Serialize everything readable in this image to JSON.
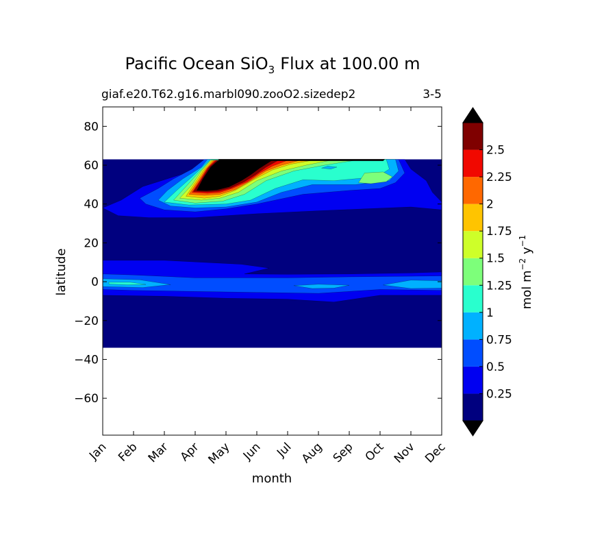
{
  "chart_data": {
    "type": "contourf",
    "title_main": "Pacific Ocean SiO",
    "title_sub": "3",
    "title_rest": "Flux at 100.00 m",
    "subtitle_left": "giaf.e20.T62.g16.marbl090.zooO2.sizedep2",
    "subtitle_right": "3-5",
    "xlabel": "month",
    "ylabel": "latitude",
    "xticks": [
      "Jan",
      "Feb",
      "Mar",
      "Apr",
      "May",
      "Jun",
      "Jul",
      "Aug",
      "Sep",
      "Oct",
      "Nov",
      "Dec"
    ],
    "yticks": [
      80,
      60,
      40,
      20,
      0,
      -20,
      -40,
      -60
    ],
    "ytick_labels": [
      "80",
      "60",
      "40",
      "20",
      "0",
      "−20",
      "−40",
      "−60"
    ],
    "xlim": [
      0,
      11
    ],
    "ylim": [
      -79,
      90
    ],
    "data_lat_range": [
      -34,
      63
    ],
    "colorbar": {
      "label_main": "mol m",
      "label_exp1": "−2",
      "label_mid": " y",
      "label_exp2": "−1",
      "levels": [
        0.25,
        0.5,
        0.75,
        1,
        1.25,
        1.5,
        1.75,
        2,
        2.25,
        2.5
      ],
      "tick_labels": [
        "0.25",
        "0.5",
        "0.75",
        "1",
        "1.25",
        "1.5",
        "1.75",
        "2",
        "2.25",
        "2.5"
      ],
      "colors": [
        "#00007f",
        "#0000f1",
        "#004dff",
        "#00b1ff",
        "#29ffce",
        "#7dff7a",
        "#ceff29",
        "#ffc400",
        "#ff6800",
        "#f10800",
        "#7f0000"
      ],
      "under_color": "#000000",
      "over_color": "#000000"
    },
    "regions": [
      {
        "name": "north-band-050",
        "level": 1,
        "color": "#0000f1",
        "pts": [
          [
            0,
            38
          ],
          [
            0.6,
            42
          ],
          [
            1.3,
            49
          ],
          [
            1.9,
            52
          ],
          [
            2.5,
            55
          ],
          [
            3.2,
            58
          ],
          [
            3.5,
            63
          ],
          [
            9.8,
            63
          ],
          [
            10,
            58
          ],
          [
            10.5,
            52
          ],
          [
            10.7,
            46
          ],
          [
            11,
            41
          ],
          [
            11,
            37
          ],
          [
            10,
            38.5
          ],
          [
            8.5,
            37.5
          ],
          [
            7,
            36.5
          ],
          [
            5,
            35
          ],
          [
            3,
            33
          ],
          [
            1.5,
            33
          ],
          [
            0.5,
            34
          ]
        ]
      },
      {
        "name": "north-band-075",
        "level": 2,
        "color": "#004dff",
        "pts": [
          [
            1.2,
            43
          ],
          [
            1.8,
            48
          ],
          [
            2.3,
            53
          ],
          [
            2.9,
            58
          ],
          [
            3.3,
            63
          ],
          [
            9.6,
            63
          ],
          [
            9.8,
            56
          ],
          [
            9.5,
            51
          ],
          [
            9,
            48
          ],
          [
            8,
            47
          ],
          [
            6.5,
            45
          ],
          [
            5,
            40
          ],
          [
            4,
            37.5
          ],
          [
            3,
            36
          ],
          [
            2,
            37
          ],
          [
            1.4,
            40
          ]
        ]
      },
      {
        "name": "north-band-100",
        "level": 3,
        "color": "#00b1ff",
        "pts": [
          [
            1.8,
            42
          ],
          [
            2.1,
            47
          ],
          [
            2.6,
            53
          ],
          [
            3.2,
            59
          ],
          [
            3.4,
            63
          ],
          [
            9.5,
            63
          ],
          [
            9.6,
            57
          ],
          [
            9.3,
            52
          ],
          [
            8.2,
            50
          ],
          [
            6.8,
            50
          ],
          [
            5.8,
            46
          ],
          [
            5,
            41
          ],
          [
            4,
            38.5
          ],
          [
            3,
            38
          ],
          [
            2.2,
            39
          ]
        ]
      },
      {
        "name": "north-band-125",
        "level": 4,
        "color": "#29ffce",
        "pts": [
          [
            2,
            41
          ],
          [
            2.4,
            47
          ],
          [
            2.9,
            54
          ],
          [
            3.3,
            60
          ],
          [
            3.5,
            63
          ],
          [
            9.2,
            63
          ],
          [
            9.3,
            58
          ],
          [
            8.9,
            54
          ],
          [
            7.5,
            52
          ],
          [
            6.5,
            52.5
          ],
          [
            5.6,
            48
          ],
          [
            4.8,
            42
          ],
          [
            4,
            40
          ],
          [
            2.8,
            39.5
          ]
        ]
      },
      {
        "name": "north-band-150",
        "level": 5,
        "color": "#7dff7a",
        "pts": [
          [
            2.3,
            42
          ],
          [
            2.7,
            49
          ],
          [
            3.1,
            56
          ],
          [
            3.5,
            62.5
          ],
          [
            8.2,
            62.5
          ],
          [
            7.2,
            60
          ],
          [
            6.2,
            57
          ],
          [
            5.3,
            52
          ],
          [
            4.6,
            45
          ],
          [
            3.9,
            41.5
          ],
          [
            3,
            40.5
          ]
        ]
      },
      {
        "name": "north-band-175",
        "level": 6,
        "color": "#ceff29",
        "pts": [
          [
            2.5,
            43
          ],
          [
            2.9,
            50
          ],
          [
            3.2,
            57
          ],
          [
            3.5,
            62.5
          ],
          [
            7.4,
            62.5
          ],
          [
            6.6,
            60
          ],
          [
            5.8,
            57
          ],
          [
            5,
            52
          ],
          [
            4.4,
            46
          ],
          [
            3.8,
            43
          ],
          [
            3.2,
            42
          ]
        ]
      },
      {
        "name": "north-band-200",
        "level": 7,
        "color": "#ffc400",
        "pts": [
          [
            2.7,
            44
          ],
          [
            3,
            51
          ],
          [
            3.3,
            58
          ],
          [
            3.55,
            62.5
          ],
          [
            6.8,
            62.5
          ],
          [
            6.1,
            60.5
          ],
          [
            5.5,
            57.5
          ],
          [
            4.9,
            52.5
          ],
          [
            4.3,
            47
          ],
          [
            3.8,
            44
          ],
          [
            3.3,
            43
          ]
        ]
      },
      {
        "name": "north-band-225",
        "level": 8,
        "color": "#ff6800",
        "pts": [
          [
            2.8,
            45
          ],
          [
            3.1,
            52
          ],
          [
            3.35,
            58
          ],
          [
            3.6,
            62.5
          ],
          [
            6.4,
            62.5
          ],
          [
            5.8,
            60
          ],
          [
            5.3,
            57
          ],
          [
            4.8,
            52
          ],
          [
            4.3,
            47.5
          ],
          [
            3.8,
            45
          ],
          [
            3.3,
            44.5
          ]
        ]
      },
      {
        "name": "north-band-250",
        "level": 9,
        "color": "#f10800",
        "pts": [
          [
            2.9,
            46
          ],
          [
            3.15,
            52
          ],
          [
            3.4,
            58.5
          ],
          [
            3.65,
            62.5
          ],
          [
            6,
            62.5
          ],
          [
            5.5,
            59.5
          ],
          [
            5.1,
            56
          ],
          [
            4.7,
            51.5
          ],
          [
            4.2,
            48
          ],
          [
            3.8,
            46
          ],
          [
            3.4,
            45.5
          ]
        ]
      },
      {
        "name": "north-band-275",
        "level": 10,
        "color": "#7f0000",
        "pts": [
          [
            2.95,
            46.5
          ],
          [
            3.2,
            52.5
          ],
          [
            3.45,
            59
          ],
          [
            3.7,
            62.5
          ],
          [
            5.7,
            62.5
          ],
          [
            5.3,
            59
          ],
          [
            4.95,
            55
          ],
          [
            4.6,
            51.5
          ],
          [
            4.15,
            48.3
          ],
          [
            3.75,
            46.6
          ],
          [
            3.4,
            46.2
          ]
        ]
      },
      {
        "name": "north-over-black",
        "level": 11,
        "color": "#000000",
        "pts": [
          [
            3.05,
            47
          ],
          [
            3.25,
            53
          ],
          [
            3.5,
            59
          ],
          [
            3.75,
            62.5
          ],
          [
            5.5,
            62.5
          ],
          [
            5.1,
            58.5
          ],
          [
            4.8,
            55
          ],
          [
            4.5,
            52
          ],
          [
            4.1,
            48.8
          ],
          [
            3.7,
            47.2
          ],
          [
            3.35,
            46.8
          ]
        ]
      },
      {
        "name": "north-top-black",
        "level": 11,
        "color": "#000000",
        "pts": [
          [
            3.8,
            62.2
          ],
          [
            9.1,
            62.2
          ],
          [
            9.15,
            63
          ],
          [
            3.75,
            63
          ]
        ]
      },
      {
        "name": "north-oct-patch",
        "level": 5,
        "color": "#7dff7a",
        "pts": [
          [
            8.3,
            51
          ],
          [
            8.5,
            56
          ],
          [
            9.1,
            56.5
          ],
          [
            9.4,
            54
          ],
          [
            9.2,
            51.5
          ],
          [
            8.7,
            50.5
          ]
        ]
      },
      {
        "name": "north-sep-blob",
        "level": 3,
        "color": "#00b1ff",
        "pts": [
          [
            7.1,
            58.5
          ],
          [
            7.3,
            59.5
          ],
          [
            7.6,
            59
          ],
          [
            7.4,
            58
          ]
        ]
      },
      {
        "name": "eq-band-050",
        "level": 1,
        "color": "#0000f1",
        "pts": [
          [
            0,
            11
          ],
          [
            2,
            11
          ],
          [
            4.5,
            9
          ],
          [
            5.4,
            7
          ],
          [
            4.6,
            4
          ],
          [
            6,
            3.8
          ],
          [
            8,
            4
          ],
          [
            10,
            4.5
          ],
          [
            11,
            5
          ],
          [
            11,
            -7
          ],
          [
            9,
            -7
          ],
          [
            7.5,
            -10.5
          ],
          [
            6,
            -9
          ],
          [
            4,
            -8.5
          ],
          [
            2,
            -7.5
          ],
          [
            0,
            -7
          ]
        ]
      },
      {
        "name": "eq-band-075",
        "level": 2,
        "color": "#004dff",
        "pts": [
          [
            0,
            4
          ],
          [
            1,
            3.5
          ],
          [
            3,
            2
          ],
          [
            6,
            2
          ],
          [
            8,
            2.5
          ],
          [
            11,
            3
          ],
          [
            11,
            -4.5
          ],
          [
            9,
            -4
          ],
          [
            7,
            -6
          ],
          [
            5,
            -5.5
          ],
          [
            3,
            -5
          ],
          [
            1,
            -4.5
          ],
          [
            0,
            -4
          ]
        ]
      },
      {
        "name": "eq-band-100-jan",
        "level": 3,
        "color": "#00b1ff",
        "pts": [
          [
            0,
            1.5
          ],
          [
            1.2,
            1
          ],
          [
            2.2,
            -1.5
          ],
          [
            1.3,
            -3
          ],
          [
            0,
            -2.5
          ]
        ]
      },
      {
        "name": "eq-band-100-aug",
        "level": 3,
        "color": "#00b1ff",
        "pts": [
          [
            6.2,
            -2
          ],
          [
            7,
            -1.3
          ],
          [
            8,
            -1.8
          ],
          [
            7.5,
            -3.3
          ],
          [
            6.8,
            -3.5
          ]
        ]
      },
      {
        "name": "eq-band-100-nov",
        "level": 3,
        "color": "#00b1ff",
        "pts": [
          [
            9.1,
            -1.7
          ],
          [
            10,
            0.8
          ],
          [
            11,
            0.5
          ],
          [
            11,
            -3.3
          ],
          [
            10,
            -3.5
          ]
        ]
      },
      {
        "name": "eq-band-125-jan",
        "level": 4,
        "color": "#29ffce",
        "pts": [
          [
            0.2,
            -0.3
          ],
          [
            0.9,
            -0.3
          ],
          [
            1.4,
            -1.4
          ],
          [
            0.8,
            -1.6
          ],
          [
            0.2,
            -1.2
          ]
        ]
      }
    ]
  }
}
